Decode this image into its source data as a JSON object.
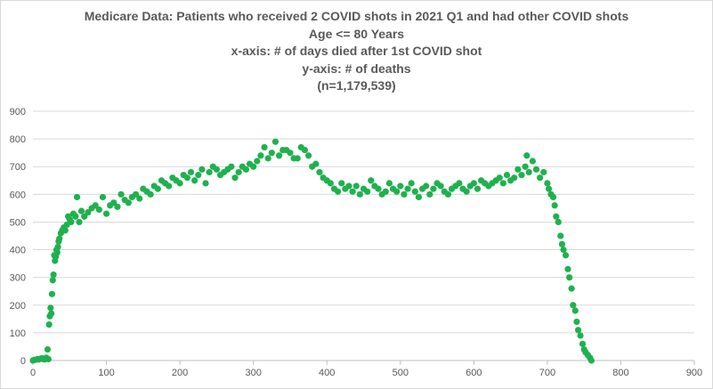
{
  "chart_data": {
    "type": "scatter",
    "title_lines": [
      "Medicare Data: Patients who received 2 COVID shots in 2021 Q1 and had other COVID shots",
      "Age <= 80 Years",
      "x-axis: # of days died after 1st COVID shot",
      "y-axis: # of deaths",
      "(n=1,179,539)"
    ],
    "xlim": [
      0,
      900
    ],
    "ylim": [
      0,
      900
    ],
    "x_ticks": [
      0,
      100,
      200,
      300,
      400,
      500,
      600,
      700,
      800,
      900
    ],
    "y_ticks": [
      0,
      100,
      200,
      300,
      400,
      500,
      600,
      700,
      800,
      900
    ],
    "grid": "horizontal",
    "legend": "none",
    "marker_color": "#1fb14e",
    "series": [
      {
        "x": [
          0,
          2,
          4,
          6,
          8,
          10,
          12,
          14,
          16,
          18,
          20,
          21,
          22,
          23,
          24,
          25,
          26,
          27,
          28,
          29,
          30,
          31,
          32,
          33,
          34,
          35,
          36,
          38,
          40,
          42,
          44,
          46,
          48,
          50,
          52,
          55,
          58,
          60,
          63,
          66,
          70,
          75,
          80,
          85,
          90,
          95,
          100,
          105,
          110,
          115,
          120,
          125,
          130,
          135,
          140,
          145,
          150,
          155,
          160,
          165,
          170,
          175,
          180,
          185,
          190,
          195,
          200,
          205,
          210,
          215,
          220,
          225,
          230,
          235,
          240,
          245,
          250,
          255,
          260,
          265,
          270,
          275,
          280,
          285,
          290,
          295,
          300,
          305,
          310,
          315,
          320,
          325,
          330,
          335,
          340,
          345,
          350,
          355,
          360,
          365,
          370,
          375,
          380,
          385,
          390,
          395,
          400,
          405,
          410,
          415,
          420,
          425,
          430,
          435,
          440,
          445,
          450,
          455,
          460,
          465,
          470,
          475,
          480,
          485,
          490,
          495,
          500,
          505,
          510,
          515,
          520,
          525,
          530,
          535,
          540,
          545,
          550,
          555,
          560,
          565,
          570,
          575,
          580,
          585,
          590,
          595,
          600,
          605,
          610,
          615,
          620,
          625,
          630,
          635,
          640,
          645,
          650,
          655,
          660,
          665,
          670,
          672,
          675,
          680,
          685,
          690,
          695,
          700,
          702,
          705,
          708,
          710,
          712,
          715,
          718,
          720,
          722,
          725,
          728,
          730,
          733,
          735,
          738,
          740,
          742,
          745,
          748,
          750,
          752,
          755,
          758,
          760
        ],
        "y": [
          0,
          2,
          3,
          5,
          4,
          6,
          8,
          5,
          4,
          10,
          40,
          5,
          130,
          160,
          190,
          170,
          240,
          290,
          310,
          380,
          360,
          375,
          400,
          390,
          410,
          430,
          440,
          460,
          470,
          480,
          470,
          490,
          520,
          510,
          500,
          530,
          520,
          590,
          500,
          540,
          520,
          535,
          550,
          560,
          545,
          590,
          530,
          560,
          570,
          555,
          600,
          580,
          570,
          590,
          600,
          585,
          620,
          610,
          600,
          630,
          620,
          650,
          640,
          630,
          660,
          650,
          640,
          670,
          660,
          680,
          650,
          670,
          690,
          640,
          680,
          700,
          690,
          670,
          680,
          690,
          700,
          660,
          680,
          700,
          690,
          710,
          700,
          720,
          740,
          770,
          730,
          750,
          790,
          740,
          760,
          760,
          750,
          730,
          730,
          770,
          760,
          740,
          700,
          710,
          680,
          660,
          650,
          640,
          620,
          610,
          640,
          620,
          630,
          610,
          630,
          600,
          620,
          610,
          650,
          630,
          620,
          600,
          610,
          640,
          620,
          610,
          630,
          600,
          620,
          640,
          610,
          590,
          620,
          630,
          600,
          620,
          640,
          630,
          610,
          600,
          620,
          630,
          640,
          620,
          610,
          630,
          640,
          620,
          650,
          640,
          630,
          640,
          650,
          660,
          640,
          670,
          650,
          660,
          690,
          670,
          700,
          740,
          680,
          720,
          690,
          660,
          680,
          640,
          620,
          600,
          590,
          560,
          520,
          500,
          450,
          420,
          400,
          380,
          330,
          300,
          260,
          200,
          180,
          140,
          110,
          90,
          60,
          40,
          30,
          20,
          10,
          0
        ]
      }
    ]
  }
}
